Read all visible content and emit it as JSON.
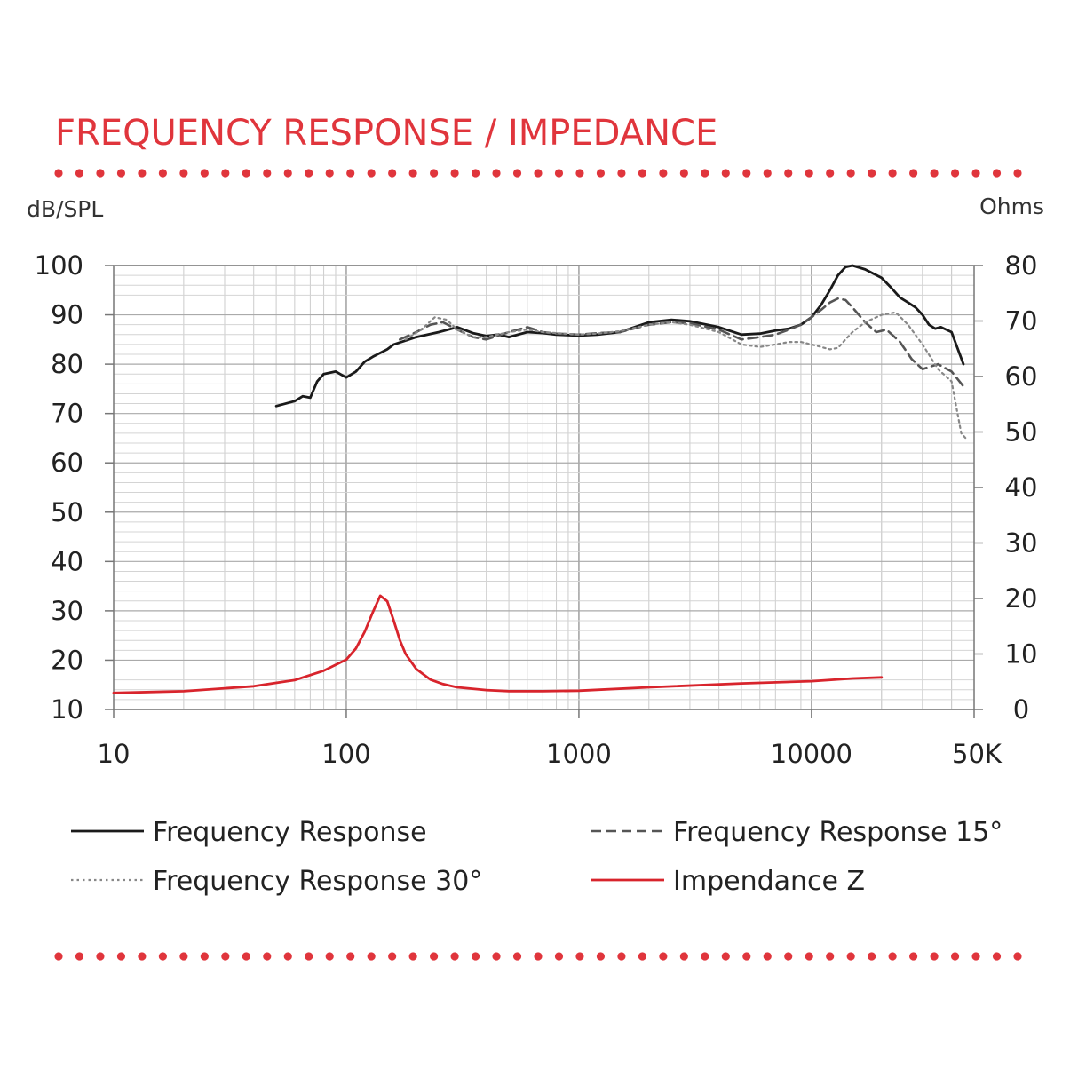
{
  "chart_data": {
    "type": "line",
    "title": "FREQUENCY RESPONSE / IMPEDANCE",
    "ylabel": "dB/SPL",
    "y2label": "Ohms",
    "x_scale": "log",
    "xlim": [
      10,
      50000
    ],
    "ylim": [
      10,
      100
    ],
    "y2lim": [
      0,
      80
    ],
    "x_tick_labels": [
      "10",
      "100",
      "1000",
      "10000",
      "50K"
    ],
    "x_tick_values": [
      10,
      100,
      1000,
      10000,
      50000
    ],
    "y_ticks": [
      10,
      20,
      30,
      40,
      50,
      60,
      70,
      80,
      90,
      100
    ],
    "y2_ticks": [
      0,
      10,
      20,
      30,
      40,
      50,
      60,
      70,
      80
    ],
    "grid": true,
    "legend_position": "bottom",
    "colors": {
      "accent": "#e0353c",
      "fr": "#1a1a1a",
      "fr15": "#555555",
      "fr30": "#888888",
      "imp": "#d8242c"
    },
    "series": [
      {
        "name": "Frequency Response",
        "axis": "left",
        "style": "solid",
        "x": [
          50,
          60,
          65,
          70,
          75,
          80,
          90,
          100,
          110,
          120,
          130,
          150,
          160,
          200,
          250,
          300,
          350,
          400,
          450,
          500,
          600,
          700,
          800,
          1000,
          1200,
          1500,
          2000,
          2500,
          3000,
          4000,
          5000,
          6000,
          7000,
          8000,
          9000,
          10000,
          11000,
          12000,
          13000,
          14000,
          15000,
          17000,
          20000,
          22000,
          24000,
          26000,
          28000,
          30000,
          32000,
          34000,
          36000,
          40000,
          45000
        ],
        "y": [
          71.5,
          72.5,
          73.5,
          73.2,
          76.5,
          78,
          78.5,
          77.3,
          78.5,
          80.5,
          81.5,
          83,
          84,
          85.5,
          86.5,
          87.5,
          86.3,
          85.7,
          86.0,
          85.5,
          86.5,
          86.3,
          86.0,
          85.8,
          86.0,
          86.5,
          88.5,
          89.0,
          88.7,
          87.5,
          86.0,
          86.2,
          86.8,
          87.2,
          88.0,
          89.5,
          92,
          95,
          98,
          99.7,
          100,
          99.2,
          97.5,
          95.5,
          93.5,
          92.5,
          91.5,
          90.0,
          88.0,
          87.2,
          87.5,
          86.5,
          80.0
        ]
      },
      {
        "name": "Frequency Response 15°",
        "axis": "left",
        "style": "dashed",
        "x": [
          170,
          200,
          230,
          260,
          300,
          350,
          400,
          500,
          600,
          700,
          800,
          1000,
          1200,
          1500,
          2000,
          2500,
          3000,
          4000,
          5000,
          6000,
          7000,
          8000,
          9000,
          10000,
          11000,
          12000,
          13000,
          14000,
          15000,
          17000,
          19000,
          21000,
          24000,
          27000,
          30000,
          35000,
          40000,
          45000
        ],
        "y": [
          85,
          86.5,
          88.0,
          88.5,
          87.0,
          85.5,
          85.0,
          86.5,
          87.5,
          86.5,
          86.2,
          86.0,
          86.3,
          86.5,
          88.0,
          88.5,
          88.3,
          87.0,
          85.0,
          85.5,
          86.0,
          87.0,
          88.0,
          89.5,
          91.0,
          92.5,
          93.3,
          93.0,
          91.5,
          88.5,
          86.5,
          87.0,
          84.5,
          81.0,
          79.0,
          80.0,
          78.5,
          75.5
        ]
      },
      {
        "name": "Frequency Response 30°",
        "axis": "left",
        "style": "dotted",
        "x": [
          180,
          210,
          240,
          270,
          300,
          350,
          400,
          500,
          600,
          700,
          800,
          1000,
          1200,
          1500,
          2000,
          2500,
          3000,
          4000,
          5000,
          6000,
          7000,
          8000,
          9000,
          10000,
          11000,
          12000,
          13000,
          14000,
          15000,
          17000,
          20000,
          23000,
          26000,
          30000,
          35000,
          40000,
          44000,
          46000
        ],
        "y": [
          85.0,
          87.0,
          89.5,
          89.0,
          87.0,
          85.5,
          85.5,
          86.5,
          87.0,
          86.5,
          86.3,
          86.0,
          86.2,
          86.7,
          88.0,
          88.5,
          88.0,
          86.5,
          84.0,
          83.5,
          84.0,
          84.5,
          84.5,
          84.0,
          83.5,
          83.0,
          83.3,
          85.0,
          86.5,
          88.5,
          90.0,
          90.5,
          88.0,
          84.0,
          79.0,
          76.5,
          66.0,
          65.0
        ]
      },
      {
        "name": "Impendance Z",
        "axis": "right",
        "style": "solid",
        "x": [
          10,
          20,
          40,
          60,
          80,
          100,
          110,
          120,
          130,
          140,
          150,
          160,
          170,
          180,
          200,
          230,
          260,
          300,
          400,
          500,
          700,
          1000,
          2000,
          5000,
          10000,
          15000,
          20000
        ],
        "y": [
          3.0,
          3.3,
          4.2,
          5.3,
          7.0,
          9.0,
          11.0,
          14.0,
          17.5,
          20.5,
          19.5,
          16.0,
          12.5,
          10.0,
          7.3,
          5.4,
          4.6,
          4.0,
          3.5,
          3.3,
          3.3,
          3.4,
          4.0,
          4.7,
          5.1,
          5.6,
          5.8
        ]
      }
    ]
  }
}
